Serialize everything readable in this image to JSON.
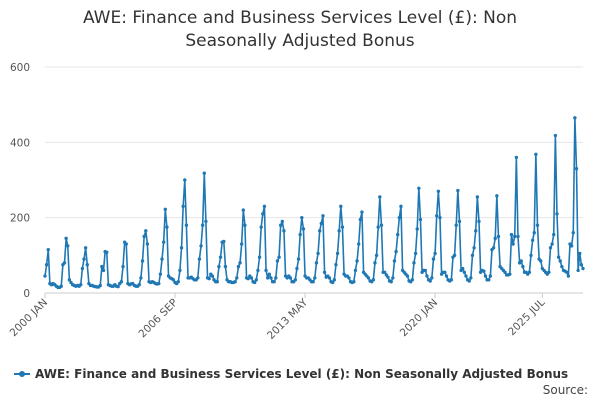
{
  "chart_data": {
    "type": "line",
    "title_lines": [
      "AWE: Finance and Business Services Level (£): Non",
      "Seasonally Adjusted Bonus"
    ],
    "xlabel": "",
    "ylabel": "",
    "ylim": [
      0,
      600
    ],
    "yticks": [
      0,
      200,
      400,
      600
    ],
    "grid": true,
    "legend_position": "bottom-left",
    "series_color": "#1f78b4",
    "x_tick_labels": [
      "2000 JAN",
      "2006 SEP",
      "2013 MAY",
      "2020 JAN",
      "2025 JUL"
    ],
    "x_ticks": [
      {
        "label": "2000 JAN",
        "year": 2000,
        "month": 1
      },
      {
        "label": "2006 SEP",
        "year": 2006,
        "month": 9
      },
      {
        "label": "2013 MAY",
        "year": 2013,
        "month": 5
      },
      {
        "label": "2020 JAN",
        "year": 2020,
        "month": 1
      },
      {
        "label": "2025 JUL",
        "year": 2025,
        "month": 7
      }
    ],
    "start": {
      "year": 2000,
      "month": 1
    },
    "series": [
      {
        "name": "AWE: Finance and Business Services Level (£): Non Seasonally Adjusted Bonus",
        "values": [
          45,
          75,
          115,
          25,
          22,
          25,
          22,
          18,
          15,
          15,
          18,
          75,
          80,
          145,
          125,
          35,
          28,
          22,
          20,
          18,
          20,
          18,
          22,
          65,
          90,
          120,
          75,
          25,
          20,
          20,
          18,
          17,
          16,
          16,
          20,
          70,
          60,
          110,
          108,
          22,
          20,
          18,
          18,
          22,
          18,
          17,
          25,
          30,
          70,
          135,
          130,
          25,
          22,
          24,
          25,
          20,
          18,
          18,
          22,
          40,
          85,
          150,
          165,
          130,
          30,
          28,
          30,
          28,
          25,
          24,
          25,
          50,
          90,
          135,
          222,
          175,
          45,
          40,
          38,
          35,
          28,
          25,
          30,
          60,
          120,
          230,
          300,
          180,
          40,
          40,
          42,
          38,
          35,
          35,
          40,
          90,
          125,
          180,
          318,
          190,
          40,
          38,
          50,
          45,
          35,
          30,
          30,
          70,
          95,
          135,
          137,
          70,
          35,
          30,
          30,
          28,
          28,
          30,
          40,
          70,
          80,
          130,
          220,
          180,
          40,
          38,
          45,
          40,
          30,
          28,
          35,
          60,
          95,
          175,
          210,
          230,
          60,
          40,
          50,
          40,
          30,
          30,
          40,
          85,
          95,
          180,
          190,
          165,
          45,
          40,
          45,
          40,
          30,
          30,
          35,
          65,
          90,
          155,
          200,
          170,
          45,
          40,
          40,
          35,
          30,
          30,
          40,
          80,
          105,
          165,
          185,
          205,
          55,
          42,
          45,
          40,
          30,
          28,
          35,
          75,
          105,
          165,
          230,
          175,
          50,
          45,
          45,
          40,
          30,
          28,
          30,
          60,
          85,
          130,
          195,
          215,
          55,
          50,
          45,
          40,
          32,
          30,
          35,
          80,
          100,
          175,
          255,
          180,
          55,
          55,
          48,
          42,
          32,
          30,
          40,
          85,
          110,
          155,
          200,
          230,
          60,
          55,
          50,
          45,
          32,
          30,
          35,
          80,
          105,
          170,
          278,
          195,
          55,
          60,
          60,
          45,
          35,
          32,
          40,
          90,
          105,
          205,
          270,
          200,
          50,
          55,
          55,
          45,
          35,
          32,
          35,
          95,
          100,
          180,
          272,
          190,
          60,
          65,
          55,
          45,
          35,
          32,
          40,
          100,
          120,
          165,
          255,
          190,
          55,
          60,
          58,
          45,
          35,
          35,
          45,
          115,
          120,
          145,
          258,
          150,
          70,
          65,
          60,
          55,
          48,
          48,
          50,
          155,
          130,
          150,
          360,
          150,
          80,
          85,
          70,
          55,
          55,
          50,
          55,
          100,
          140,
          160,
          368,
          180,
          90,
          85,
          65,
          60,
          55,
          50,
          55,
          120,
          130,
          155,
          418,
          210,
          95,
          85,
          70,
          60,
          58,
          55,
          45,
          130,
          125,
          160,
          465,
          330,
          60,
          105,
          75,
          65
        ]
      }
    ]
  },
  "legend": {
    "label": "AWE: Finance and Business Services Level (£): Non Seasonally Adjusted Bonus"
  },
  "footer": {
    "source_label": "Source:"
  }
}
